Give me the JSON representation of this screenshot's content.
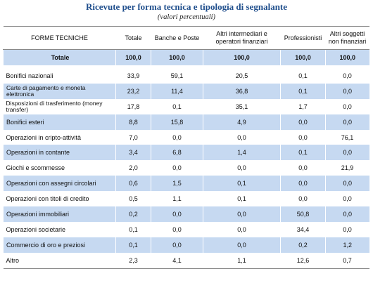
{
  "title": "Ricevute per forma tecnica e tipologia di segnalante",
  "subtitle": "(valori percentuali)",
  "table": {
    "header": [
      "FORME TECNICHE",
      "Totale",
      "Banche e Poste",
      "Altri intermediari e operatori finanziari",
      "Professionisti",
      "Altri soggetti non finanziari"
    ],
    "total": [
      "Totale",
      "100,0",
      "100,0",
      "100,0",
      "100,0",
      "100,0"
    ],
    "rows": [
      [
        "Bonifici nazionali",
        "33,9",
        "59,1",
        "20,5",
        "0,1",
        "0,0"
      ],
      [
        "Carte di pagamento e moneta elettronica",
        "23,2",
        "11,4",
        "36,8",
        "0,1",
        "0,0"
      ],
      [
        "Disposizioni di trasferimento (money transfer)",
        "17,8",
        "0,1",
        "35,1",
        "1,7",
        "0,0"
      ],
      [
        "Bonifici esteri",
        "8,8",
        "15,8",
        "4,9",
        "0,0",
        "0,0"
      ],
      [
        "Operazioni in cripto-attività",
        "7,0",
        "0,0",
        "0,0",
        "0,0",
        "76,1"
      ],
      [
        "Operazioni in contante",
        "3,4",
        "6,8",
        "1,4",
        "0,1",
        "0,0"
      ],
      [
        "Giochi e scommesse",
        "2,0",
        "0,0",
        "0,0",
        "0,0",
        "21,9"
      ],
      [
        "Operazioni con assegni circolari",
        "0,6",
        "1,5",
        "0,1",
        "0,0",
        "0,0"
      ],
      [
        "Operazioni con titoli di credito",
        "0,5",
        "1,1",
        "0,1",
        "0,0",
        "0,0"
      ],
      [
        "Operazioni immobiliari",
        "0,2",
        "0,0",
        "0,0",
        "50,8",
        "0,0"
      ],
      [
        "Operazioni societarie",
        "0,1",
        "0,0",
        "0,0",
        "34,4",
        "0,0"
      ],
      [
        "Commercio di oro e preziosi",
        "0,1",
        "0,0",
        "0,0",
        "0,2",
        "1,2"
      ],
      [
        "Altro",
        "2,3",
        "4,1",
        "1,1",
        "12,6",
        "0,7"
      ]
    ]
  }
}
